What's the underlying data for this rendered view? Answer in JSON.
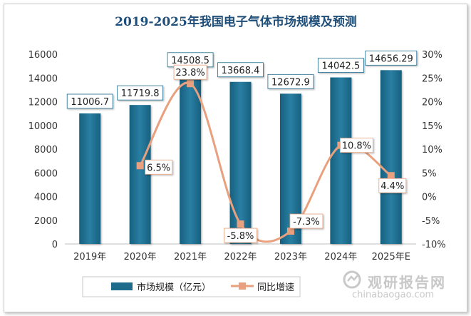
{
  "chart_data": {
    "type": "bar",
    "title": "2019-2025年我国电子气体市场规模及预测",
    "categories": [
      "2019年",
      "2020年",
      "2021年",
      "2022年",
      "2023年",
      "2024年",
      "2025年E"
    ],
    "series": [
      {
        "name": "市场规模（亿元）",
        "type": "bar",
        "axis": "left",
        "values": [
          11006.7,
          11719.8,
          14508.5,
          13668.4,
          12672.9,
          14042.5,
          14656.29
        ],
        "labels": [
          "11006.7",
          "11719.8",
          "14508.5",
          "13668.4",
          "12672.9",
          "14042.5",
          "14656.29"
        ],
        "color": "#1f6b8c"
      },
      {
        "name": "同比增速",
        "type": "line",
        "axis": "right",
        "values": [
          null,
          6.5,
          23.8,
          -5.8,
          -7.3,
          10.8,
          4.4
        ],
        "labels": [
          null,
          "6.5%",
          "23.8%",
          "-5.8%",
          "-7.3%",
          "10.8%",
          "4.4%"
        ],
        "color": "#e8a07e"
      }
    ],
    "y_left": {
      "min": 0,
      "max": 16000,
      "ticks": [
        "0",
        "2000",
        "4000",
        "6000",
        "8000",
        "10000",
        "12000",
        "14000",
        "16000"
      ]
    },
    "y_right": {
      "min": -10,
      "max": 30,
      "ticks": [
        "-10%",
        "-5%",
        "0%",
        "5%",
        "10%",
        "15%",
        "20%",
        "25%",
        "30%"
      ]
    },
    "grid": false,
    "legend_position": "bottom"
  },
  "watermark": {
    "title": "观研报告网",
    "url": "chinabaogao.com"
  },
  "colors": {
    "title": "#1f4e79",
    "bar": "#1f6b8c",
    "line": "#e8a07e",
    "label_border": "#1f6b8c"
  }
}
